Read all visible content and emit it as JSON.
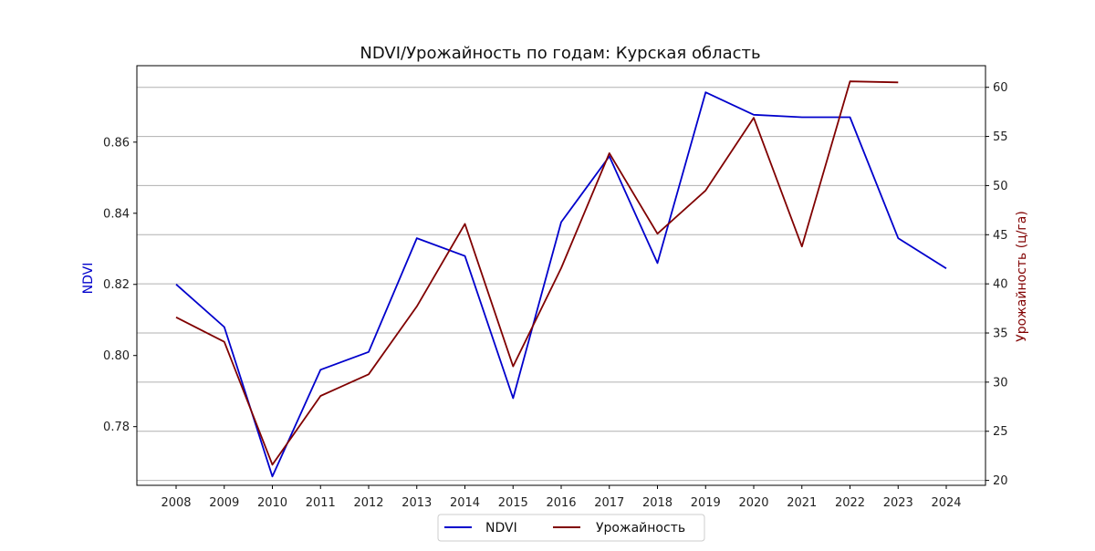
{
  "chart_data": {
    "type": "line",
    "title": "NDVI/Урожайность по годам: Курская область",
    "xlabel": "",
    "x": [
      "2008",
      "2009",
      "2010",
      "2011",
      "2012",
      "2013",
      "2014",
      "2015",
      "2016",
      "2017",
      "2018",
      "2019",
      "2020",
      "2021",
      "2022",
      "2023",
      "2024"
    ],
    "y_left": {
      "label": "NDVI",
      "ylim": [
        0.7635,
        0.8815
      ],
      "ticks": [
        "0.78",
        "0.80",
        "0.82",
        "0.84",
        "0.86"
      ],
      "tick_values": [
        0.78,
        0.8,
        0.82,
        0.84,
        0.86
      ]
    },
    "y_right": {
      "label": "Урожайность (ц/га)",
      "ylim": [
        19.5,
        62.2
      ],
      "ticks": [
        "20",
        "25",
        "30",
        "35",
        "40",
        "45",
        "50",
        "55",
        "60"
      ],
      "tick_values": [
        20,
        25,
        30,
        35,
        40,
        45,
        50,
        55,
        60
      ]
    },
    "grid": "horizontal (right axis)",
    "legend_position": "bottom-center",
    "series": [
      {
        "name": "NDVI",
        "axis": "left",
        "color": "#0000cc",
        "values": [
          0.82,
          0.808,
          0.766,
          0.796,
          0.801,
          0.833,
          0.828,
          0.788,
          0.8375,
          0.856,
          0.826,
          0.874,
          0.8677,
          0.867,
          0.867,
          0.833,
          0.8245
        ]
      },
      {
        "name": "Урожайность",
        "axis": "right",
        "color": "#800000",
        "values": [
          36.6,
          34.1,
          21.6,
          28.6,
          30.8,
          37.7,
          46.1,
          31.6,
          41.6,
          53.3,
          45.1,
          49.5,
          56.9,
          43.8,
          60.6,
          60.5,
          null
        ]
      }
    ]
  }
}
